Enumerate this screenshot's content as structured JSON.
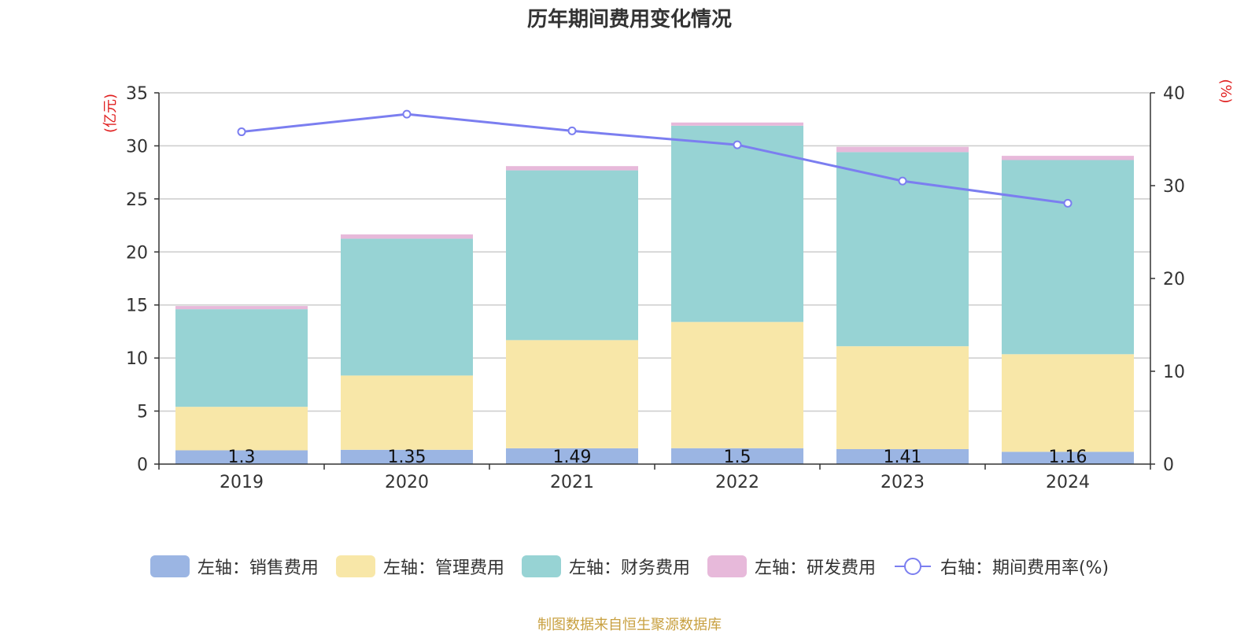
{
  "title": "历年期间费用变化情况",
  "source_note": "制图数据来自恒生聚源数据库",
  "colors": {
    "sales": "#9bb5e3",
    "admin": "#f8e7a8",
    "finance": "#97d3d4",
    "rd": "#e7b9da",
    "rate": "#7b7ef0",
    "axis_unit": "#e02020"
  },
  "legend": [
    {
      "label": "左轴：销售费用",
      "key": "sales",
      "type": "bar"
    },
    {
      "label": "左轴：管理费用",
      "key": "admin",
      "type": "bar"
    },
    {
      "label": "左轴：财务费用",
      "key": "finance",
      "type": "bar"
    },
    {
      "label": "左轴：研发费用",
      "key": "rd",
      "type": "bar"
    },
    {
      "label": "右轴：期间费用率(%)",
      "key": "rate",
      "type": "line"
    }
  ],
  "chart_data": {
    "type": "bar",
    "stacked": true,
    "title": "历年期间费用变化情况",
    "categories": [
      "2019",
      "2020",
      "2021",
      "2022",
      "2023",
      "2024"
    ],
    "left_axis": {
      "label": "(亿元)",
      "ylim": [
        0,
        35
      ],
      "ticks": [
        0,
        5,
        10,
        15,
        20,
        25,
        30,
        35
      ]
    },
    "right_axis": {
      "label": "(%)",
      "ylim": [
        0,
        40
      ],
      "ticks": [
        0,
        10,
        20,
        30,
        40
      ]
    },
    "grid": true,
    "legend_position": "bottom",
    "series": [
      {
        "name": "左轴：销售费用",
        "key": "sales",
        "axis": "left",
        "values": [
          1.3,
          1.35,
          1.49,
          1.5,
          1.41,
          1.16
        ],
        "data_labels": [
          "1.3",
          "1.35",
          "1.49",
          "1.5",
          "1.41",
          "1.16"
        ]
      },
      {
        "name": "左轴：管理费用",
        "key": "admin",
        "axis": "left",
        "values": [
          4.1,
          7.0,
          10.2,
          11.9,
          9.7,
          9.2
        ]
      },
      {
        "name": "左轴：财务费用",
        "key": "finance",
        "axis": "left",
        "values": [
          9.2,
          12.9,
          16.0,
          18.5,
          18.3,
          18.3
        ]
      },
      {
        "name": "左轴：研发费用",
        "key": "rd",
        "axis": "left",
        "values": [
          0.3,
          0.4,
          0.4,
          0.3,
          0.5,
          0.4
        ]
      },
      {
        "name": "右轴：期间费用率(%)",
        "key": "rate",
        "axis": "right",
        "type": "line",
        "values": [
          35.8,
          37.7,
          35.9,
          34.4,
          30.5,
          28.1
        ]
      }
    ]
  }
}
